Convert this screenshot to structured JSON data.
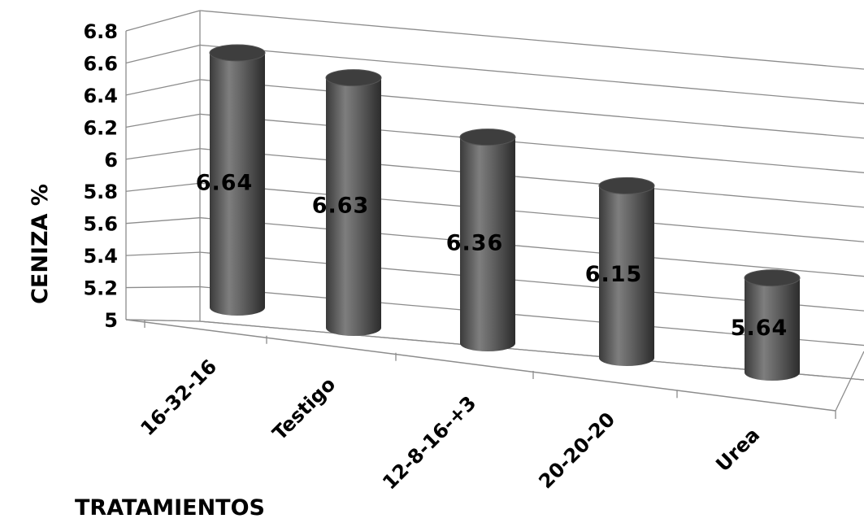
{
  "chart_data": {
    "type": "bar",
    "categories": [
      "16-32-16",
      "Testigo",
      "12-8-16-+3",
      "20-20-20",
      "Urea"
    ],
    "values": [
      6.64,
      6.63,
      6.36,
      6.15,
      5.64
    ],
    "data_labels": [
      "6.64",
      "6.63",
      "6.36",
      "6.15",
      "5.64"
    ],
    "ylabel": "CENIZA %",
    "xlabel": "TRATAMIENTOS",
    "ylim": [
      5,
      6.8
    ],
    "yticks": [
      "5",
      "5.2",
      "5.4",
      "5.6",
      "5.8",
      "6",
      "6.2",
      "6.4",
      "6.6",
      "6.8"
    ],
    "grid": true,
    "style": "3d-cylinder",
    "colors": {
      "bar": "#555555",
      "bar_light": "#8a8a8a",
      "bar_dark": "#2e2e2e",
      "grid": "#8c8c8c"
    }
  }
}
